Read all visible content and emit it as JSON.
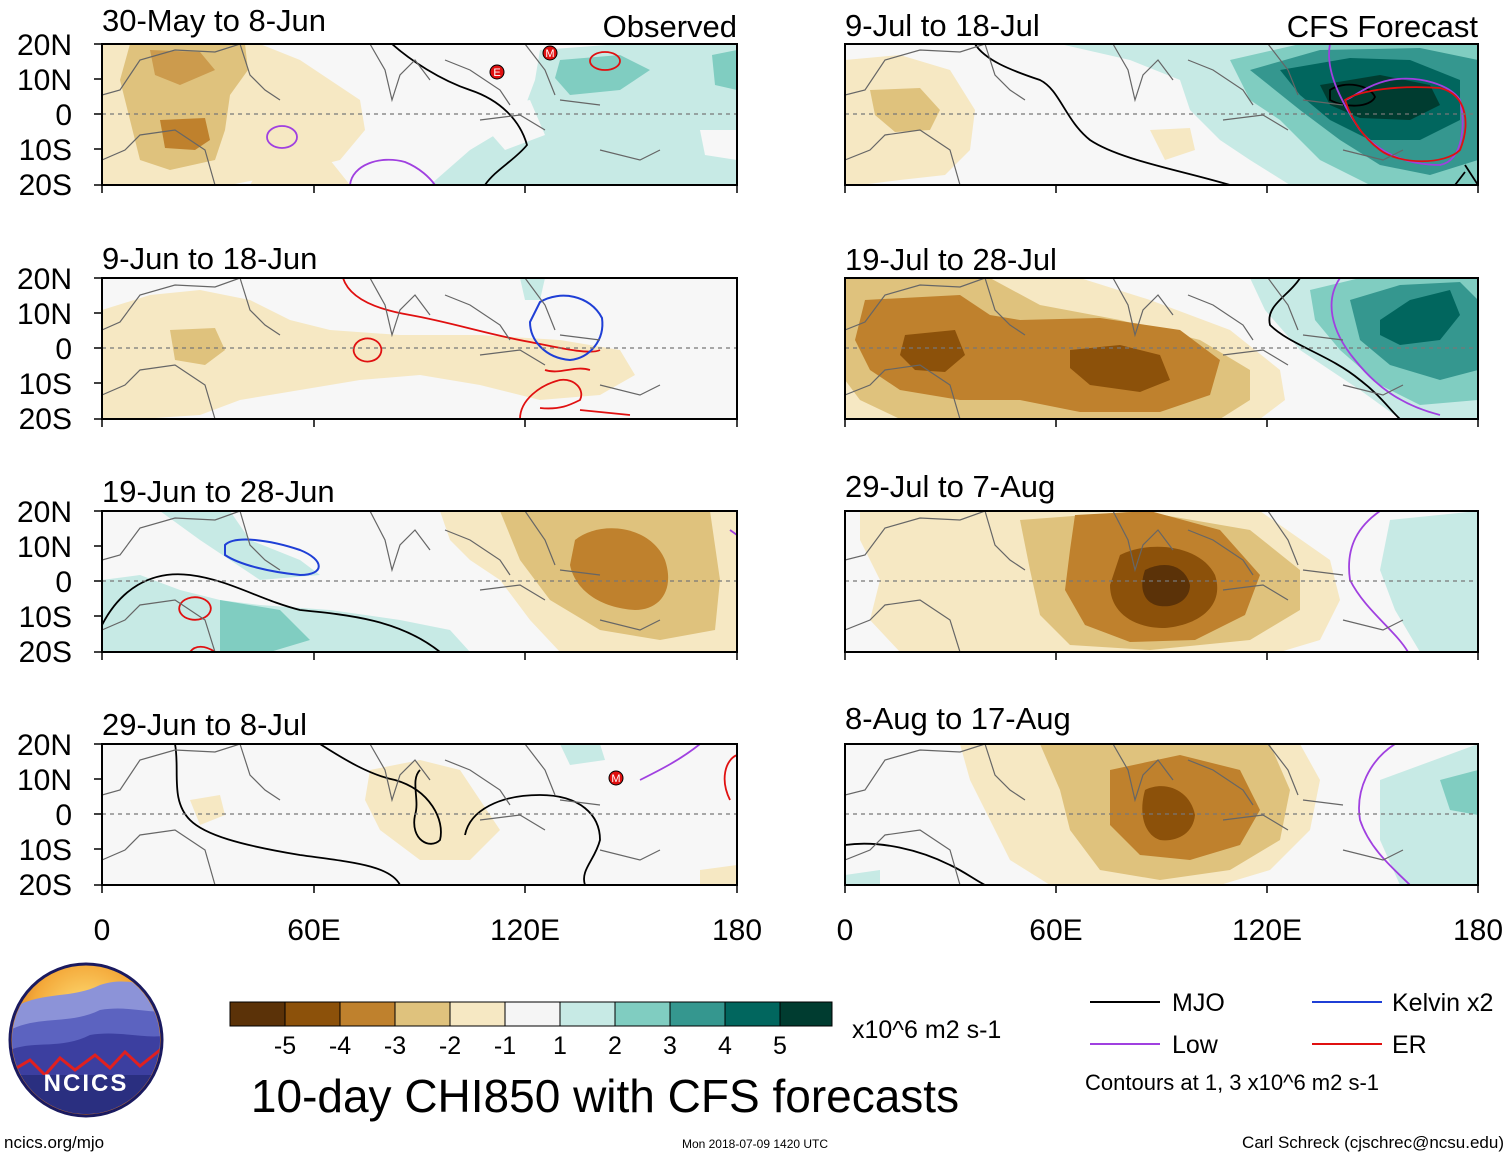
{
  "title": "10-day CHI850 with CFS forecasts",
  "observed_label": "Observed",
  "forecast_label": "CFS Forecast",
  "lat_labels": [
    "20N",
    "10N",
    "0",
    "10S",
    "20S"
  ],
  "lon_labels": [
    "0",
    "60E",
    "120E",
    "180"
  ],
  "panels": [
    {
      "title": "30-May to 8-Jun",
      "kind": "observed",
      "storm_labels": [
        "E",
        "M"
      ]
    },
    {
      "title": "9-Jun to 18-Jun",
      "kind": "observed",
      "storm_labels": []
    },
    {
      "title": "19-Jun to 28-Jun",
      "kind": "observed",
      "storm_labels": []
    },
    {
      "title": "29-Jun to 8-Jul",
      "kind": "observed",
      "storm_labels": [
        "M"
      ]
    },
    {
      "title": "9-Jul to 18-Jul",
      "kind": "forecast",
      "storm_labels": []
    },
    {
      "title": "19-Jul to 28-Jul",
      "kind": "forecast",
      "storm_labels": []
    },
    {
      "title": "29-Jul to 7-Aug",
      "kind": "forecast",
      "storm_labels": []
    },
    {
      "title": "8-Aug to 17-Aug",
      "kind": "forecast",
      "storm_labels": []
    }
  ],
  "colorbar": {
    "tick_labels": [
      "-5",
      "-4",
      "-3",
      "-2",
      "-1",
      "1",
      "2",
      "3",
      "4",
      "5"
    ],
    "colors": [
      "#5b3208",
      "#8c510a",
      "#bf812d",
      "#dfc27d",
      "#f6e8c3",
      "#f5f5f5",
      "#c7eae5",
      "#80cdc1",
      "#35978f",
      "#01665e",
      "#003c30"
    ],
    "units": "x10^6 m2 s-1"
  },
  "legend": {
    "items": [
      {
        "label": "MJO",
        "color": "#000000"
      },
      {
        "label": "Kelvin x2",
        "color": "#1f3fd6"
      },
      {
        "label": "Low",
        "color": "#a040e0"
      },
      {
        "label": "ER",
        "color": "#e01010"
      }
    ],
    "note": "Contours at 1, 3 x10^6 m2 s-1"
  },
  "logo": {
    "text": "NCICS"
  },
  "footer": {
    "url": "ncics.org/mjo",
    "timestamp": "Mon 2018-07-09 1420 UTC",
    "credit": "Carl Schreck (cjschrec@ncsu.edu)"
  }
}
